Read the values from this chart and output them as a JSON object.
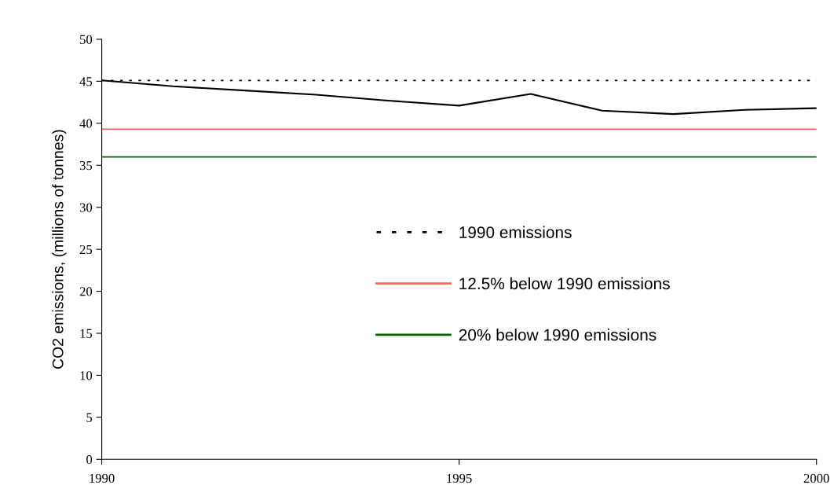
{
  "chart_data": {
    "type": "line",
    "ylabel": "CO2 emissions, (millions of tonnes)",
    "x": [
      1990,
      1991,
      1992,
      1993,
      1994,
      1995,
      1996,
      1997,
      1998,
      1999,
      2000
    ],
    "series": [
      {
        "color": "#000000",
        "values": [
          45.1,
          44.4,
          43.9,
          43.4,
          42.7,
          42.1,
          43.5,
          41.5,
          41.1,
          41.6,
          41.8
        ]
      }
    ],
    "ref_lines": [
      {
        "axis": "y",
        "value": 45.1,
        "label": "1990 emissions",
        "color": "#000000",
        "line_style": "dotted"
      },
      {
        "axis": "y",
        "value": 39.3,
        "label": "12.5% below 1990 emissions",
        "color": "#ff6060",
        "line_style": "solid"
      },
      {
        "axis": "y",
        "value": 36.0,
        "label": "20% below 1990 emissions",
        "color": "#006400",
        "line_style": "solid"
      }
    ],
    "xlim": [
      1990,
      2000
    ],
    "xticks": [
      1990,
      1995,
      2000
    ],
    "ylim": [
      0,
      50
    ],
    "yticks": [
      0,
      5,
      10,
      15,
      20,
      25,
      30,
      35,
      40,
      45,
      50
    ],
    "grid": false,
    "legend": "center",
    "marker": "none",
    "line_style": "solid"
  }
}
